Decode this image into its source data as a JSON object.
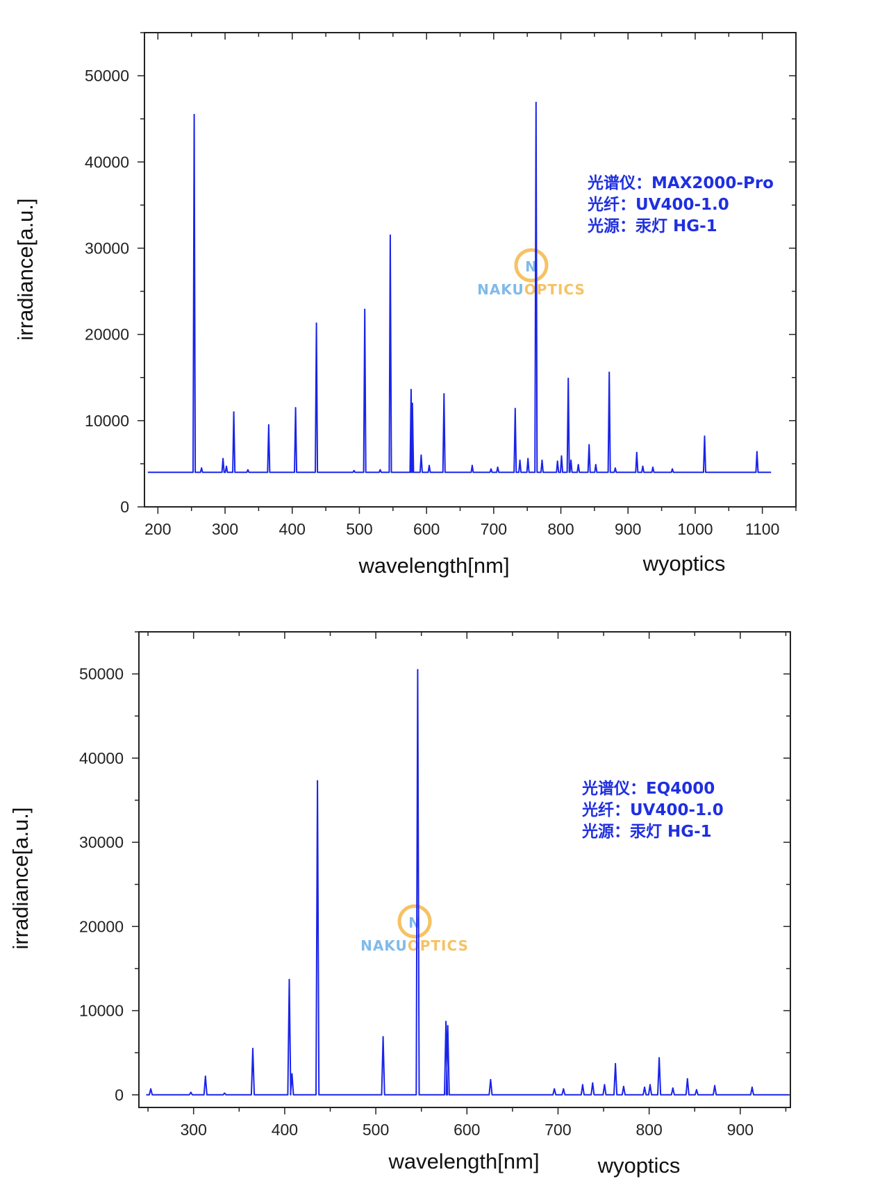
{
  "watermark": {
    "part1": "NAKU",
    "part2": "OPTICS",
    "letter": "N",
    "color1": "#6aaee6",
    "color2": "#f5b84a"
  },
  "colors": {
    "spectrum": "#1a24e8",
    "info": "#1f2fe0"
  },
  "chart_data": [
    {
      "type": "line",
      "xlabel": "wavelength[nm]",
      "ylabel": "irradiance[a.u.]",
      "credit": "wyoptics",
      "info": [
        "光谱仪：MAX2000-Pro",
        "光纤：UV400-1.0",
        "光源：汞灯 HG-1"
      ],
      "xlim": [
        180,
        1150
      ],
      "ylim": [
        0,
        55000
      ],
      "xticks": [
        200,
        300,
        400,
        500,
        600,
        700,
        800,
        900,
        1000,
        1100
      ],
      "yticks": [
        0,
        10000,
        20000,
        30000,
        40000,
        50000
      ],
      "baseline_range": [
        185,
        1113
      ],
      "baseline": 4000,
      "series": [
        {
          "peaks": [
            [
              254,
              45500
            ],
            [
              265,
              4500
            ],
            [
              297,
              5600
            ],
            [
              302,
              4700
            ],
            [
              313,
              11000
            ],
            [
              334,
              4300
            ],
            [
              365,
              9500
            ],
            [
              405,
              11500
            ],
            [
              436,
              21300
            ],
            [
              492,
              4200
            ],
            [
              508,
              22900
            ],
            [
              531,
              4300
            ],
            [
              546,
              31500
            ],
            [
              577,
              13600
            ],
            [
              579,
              12000
            ],
            [
              592,
              6000
            ],
            [
              604,
              4800
            ],
            [
              626,
              13100
            ],
            [
              668,
              4800
            ],
            [
              696,
              4400
            ],
            [
              706,
              4600
            ],
            [
              732,
              11400
            ],
            [
              739,
              5400
            ],
            [
              751,
              5600
            ],
            [
              763,
              46900
            ],
            [
              772,
              5400
            ],
            [
              795,
              5300
            ],
            [
              801,
              5900
            ],
            [
              811,
              14900
            ],
            [
              815,
              5400
            ],
            [
              826,
              4900
            ],
            [
              842,
              7200
            ],
            [
              852,
              4900
            ],
            [
              872,
              15600
            ],
            [
              881,
              4500
            ],
            [
              913,
              6300
            ],
            [
              922,
              4700
            ],
            [
              937,
              4600
            ],
            [
              966,
              4400
            ],
            [
              1014,
              8200
            ],
            [
              1092,
              6400
            ]
          ]
        }
      ]
    },
    {
      "type": "line",
      "xlabel": "wavelength[nm]",
      "ylabel": "irradiance[a.u.]",
      "credit": "wyoptics",
      "info": [
        "光谱仪：EQ4000",
        "光纤：UV400-1.0",
        "光源：汞灯 HG-1"
      ],
      "xlim": [
        240,
        955
      ],
      "ylim": [
        -1500,
        55000
      ],
      "xticks": [
        300,
        400,
        500,
        600,
        700,
        800,
        900
      ],
      "yticks": [
        0,
        10000,
        20000,
        30000,
        40000,
        50000
      ],
      "baseline_range": [
        248,
        953
      ],
      "baseline": 0,
      "series": [
        {
          "peaks": [
            [
              253,
              700
            ],
            [
              297,
              300
            ],
            [
              313,
              2200
            ],
            [
              334,
              200
            ],
            [
              365,
              5500
            ],
            [
              405,
              13700
            ],
            [
              408,
              2500
            ],
            [
              436,
              37300
            ],
            [
              508,
              6900
            ],
            [
              546,
              50500
            ],
            [
              577,
              8700
            ],
            [
              579,
              8200
            ],
            [
              626,
              1800
            ],
            [
              696,
              700
            ],
            [
              706,
              700
            ],
            [
              727,
              1200
            ],
            [
              738,
              1400
            ],
            [
              751,
              1200
            ],
            [
              763,
              3700
            ],
            [
              772,
              1000
            ],
            [
              795,
              900
            ],
            [
              801,
              1200
            ],
            [
              811,
              4400
            ],
            [
              826,
              800
            ],
            [
              842,
              1900
            ],
            [
              852,
              600
            ],
            [
              872,
              1100
            ],
            [
              913,
              900
            ]
          ]
        }
      ]
    }
  ]
}
